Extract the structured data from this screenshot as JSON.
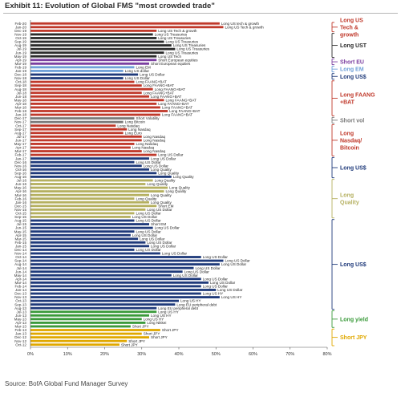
{
  "header": {
    "title": "Exhibit 11: Evolution of Global FMS \"most crowded trade\""
  },
  "footer": {
    "source": "Source: BofA Global Fund Manager Survey"
  },
  "chart_data": {
    "type": "bar",
    "orientation": "horizontal",
    "xlim": [
      0,
      80
    ],
    "x_ticks": [
      "0%",
      "10%",
      "20%",
      "30%",
      "40%",
      "50%",
      "60%",
      "70%",
      "80%"
    ],
    "grid": false,
    "groups": [
      {
        "label": "Long US Tech & growth",
        "color": "#c0392b",
        "start": 0,
        "end": 3
      },
      {
        "label": "Long UST",
        "color": "#2b2b2b",
        "start": 3,
        "end": 10
      },
      {
        "label": "Short EU",
        "color": "#7b3fa0",
        "start": 10,
        "end": 12
      },
      {
        "label": "Long EM",
        "color": "#6fa0d8",
        "start": 12,
        "end": 14
      },
      {
        "label": "Long US$",
        "color": "#1f3a7a",
        "start": 14,
        "end": 16
      },
      {
        "label": "Long FAANG +BAT",
        "color": "#c0392b",
        "start": 16,
        "end": 26
      },
      {
        "label": "Short vol",
        "color": "#7a7a7a",
        "start": 26,
        "end": 28
      },
      {
        "label": "Long Nasdaq/ Bitcoin",
        "color": "#c0392b",
        "start": 28,
        "end": 37
      },
      {
        "label": "Long US$",
        "color": "#1f3a7a",
        "start": 37,
        "end": 43
      },
      {
        "label": "Long Quality",
        "color": "#b5b060",
        "start": 43,
        "end": 54
      },
      {
        "label": "Long US$",
        "color": "#1f3a7a",
        "start": 54,
        "end": 79
      },
      {
        "label": "Long yield",
        "color": "#3a9a3a",
        "start": 79,
        "end": 84
      },
      {
        "label": "Short JPY",
        "color": "#e0a800",
        "start": 84,
        "end": 89
      }
    ],
    "categories": [
      "Feb-20",
      "Jan-20",
      "Dec-19",
      "Nov-19",
      "Oct-19",
      "Sep-19",
      "Aug-19",
      "Jul-19",
      "Jun-19",
      "May-19",
      "Apr-19",
      "Mar-19",
      "Feb-19",
      "Jan-19",
      "Dec-18",
      "Nov-18",
      "Oct-18",
      "Sep-18",
      "Aug-18",
      "Jul-18",
      "Jun-18",
      "May-18",
      "Apr-18",
      "Mar-18",
      "Feb-18",
      "Jan-18",
      "Dec-17",
      "Nov-17",
      "Oct-17",
      "Sep-17",
      "Aug-17",
      "Jul-17",
      "Jun-17",
      "May-17",
      "Apr-17",
      "Mar-17",
      "Feb-17",
      "Jan-17",
      "Dec-16",
      "Nov-16",
      "Oct-16",
      "Sep-16",
      "Aug-16",
      "Jul-16",
      "Jun-16",
      "May-16",
      "Apr-16",
      "Mar-16",
      "Feb-16",
      "Jan-16",
      "Dec-15",
      "Nov-15",
      "Oct-15",
      "Sep-15",
      "Aug-15",
      "Jul-15",
      "Jun-15",
      "May-15",
      "Apr-15",
      "Mar-15",
      "Feb-15",
      "Jan-15",
      "Dec-14",
      "Nov-14",
      "Oct-14",
      "Sep-14",
      "Aug-14",
      "Jul-14",
      "Jun-14",
      "May-14",
      "Apr-14",
      "Mar-14",
      "Feb-14",
      "Jan-14",
      "Dec-13",
      "Nov-13",
      "Oct-13",
      "Sep-13",
      "Aug-13",
      "Jul-13",
      "Jun-13",
      "May-13",
      "Apr-13",
      "Mar-13",
      "Feb-13",
      "Jan-13",
      "Dec-12",
      "Nov-12",
      "Oct-12"
    ],
    "values": [
      51,
      52,
      34,
      33,
      34,
      36,
      38,
      39,
      36,
      34,
      34,
      32,
      28,
      25,
      29,
      25,
      28,
      30,
      33,
      30,
      32,
      36,
      34,
      35,
      37,
      35,
      28,
      25,
      23,
      26,
      25,
      30,
      30,
      28,
      27,
      30,
      34,
      32,
      28,
      30,
      32,
      34,
      38,
      33,
      31,
      37,
      36,
      32,
      28,
      32,
      34,
      31,
      28,
      27,
      28,
      32,
      33,
      28,
      27,
      29,
      31,
      32,
      28,
      35,
      46,
      52,
      51,
      44,
      41,
      38,
      46,
      48,
      46,
      50,
      46,
      51,
      40,
      39,
      34,
      34,
      32,
      30,
      31,
      27,
      35,
      30,
      32,
      26,
      24
    ],
    "bar_labels": [
      "Long US tech & growth",
      "Long US Tech & growth",
      "Long US Tech & growth",
      "Long US Treasuries",
      "Long US Treasuries",
      "Long US Treasuries",
      "Long US Treasuries",
      "Long US Treasuries",
      "Long US Treasuries",
      "Long US Tech",
      "Short European equities",
      "Short European equities",
      "Long EM",
      "Long US dollar",
      "Long US Dollar",
      "Long US Dollar",
      "Long FAANG+BAT",
      "Long FAANG+BAT",
      "Long FAANG+BAT",
      "Long FAANG+BAT",
      "Long FAANG+BAT",
      "Long FAANG+BAT",
      "Long FAANG+BAT",
      "Long FAANG+BAT",
      "Long FAANG+BAT",
      "Long FAANG+BAT",
      "Short Volatility",
      "Long Bitcoin",
      "Long Nasdaq",
      "Long Nasdaq",
      "Long Euro",
      "Long Nasdaq",
      "Long Nasdaq",
      "Long Nasdaq",
      "Long Nasdaq",
      "Long Nasdaq",
      "Long US Dollar",
      "Long US Dollar",
      "Long US Dollar",
      "Long US Dollar",
      "Long Quality",
      "Long Quality",
      "Long Quality",
      "Long Quality",
      "Long Quality",
      "Long Quality",
      "Long Quality",
      "Long Quality",
      "Long Quality",
      "Long Quality",
      "Short EM",
      "Long US Dollar",
      "Long US Dollar",
      "Long US Dollar",
      "Long US Dollar",
      "Short EM",
      "Long US Dollar",
      "Long US Dollar",
      "Long US Dollar",
      "Long US Dollar",
      "Long US Dollar",
      "Long US Dollar",
      "Long US Dollar",
      "Long US Dollar",
      "Long US Dollar",
      "Long US Dollar",
      "Long US Dollar",
      "Long US Dollar",
      "Long US Dollar",
      "Long US Dollar",
      "Long US Dollar",
      "Long US Dollar",
      "Long US Dollar",
      "Long US Dollar",
      "Long US HY",
      "Long US HY",
      "Long US HY",
      "Long EU peripheral debt",
      "Long EU peripheral debt",
      "Long US HY",
      "Long US HY",
      "Long US HY",
      "Long Nikkei",
      "Short JPY",
      "Short JPY",
      "Short JPY",
      "Short JPY",
      "Short JPY",
      "Short JPY"
    ]
  }
}
